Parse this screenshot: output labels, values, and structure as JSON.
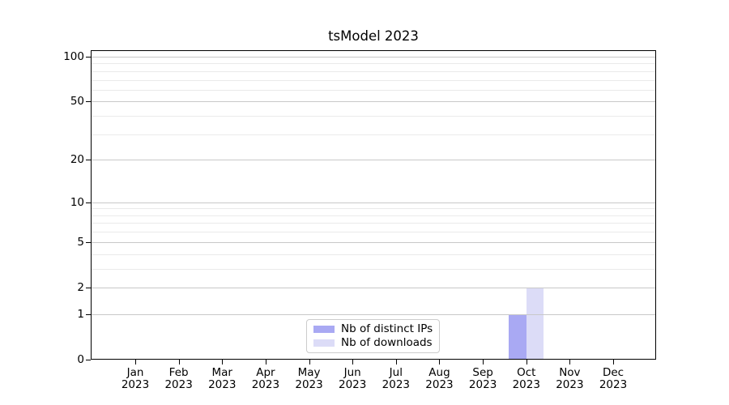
{
  "title": "tsModel 2023",
  "chart_data": {
    "type": "bar",
    "title": "tsModel 2023",
    "categories": [
      "Jan 2023",
      "Feb 2023",
      "Mar 2023",
      "Apr 2023",
      "May 2023",
      "Jun 2023",
      "Jul 2023",
      "Aug 2023",
      "Sep 2023",
      "Oct 2023",
      "Nov 2023",
      "Dec 2023"
    ],
    "series": [
      {
        "name": "Nb of distinct IPs",
        "color": "#a9a9f3",
        "values": [
          0,
          0,
          0,
          0,
          0,
          0,
          0,
          0,
          0,
          1,
          0,
          0
        ]
      },
      {
        "name": "Nb of downloads",
        "color": "#dcdcf7",
        "values": [
          0,
          0,
          0,
          0,
          0,
          0,
          0,
          0,
          0,
          2,
          0,
          0
        ]
      }
    ],
    "xlabel": "",
    "ylabel": "",
    "y_scale": "log1p",
    "ylim": [
      0,
      110
    ],
    "y_ticks": [
      0,
      1,
      2,
      5,
      10,
      20,
      50,
      100
    ],
    "y_minor_gridlines": [
      3,
      4,
      6,
      7,
      8,
      9,
      30,
      40,
      60,
      70,
      80,
      90
    ],
    "grid": "horizontal",
    "legend_position": "lower center"
  },
  "colors": {
    "background": "#ffffff",
    "axis_frame": "#000000",
    "tick_text": "#000000",
    "major_grid": "#c8c8c8",
    "minor_grid": "#eaeaea",
    "legend_border": "#cccccc"
  }
}
